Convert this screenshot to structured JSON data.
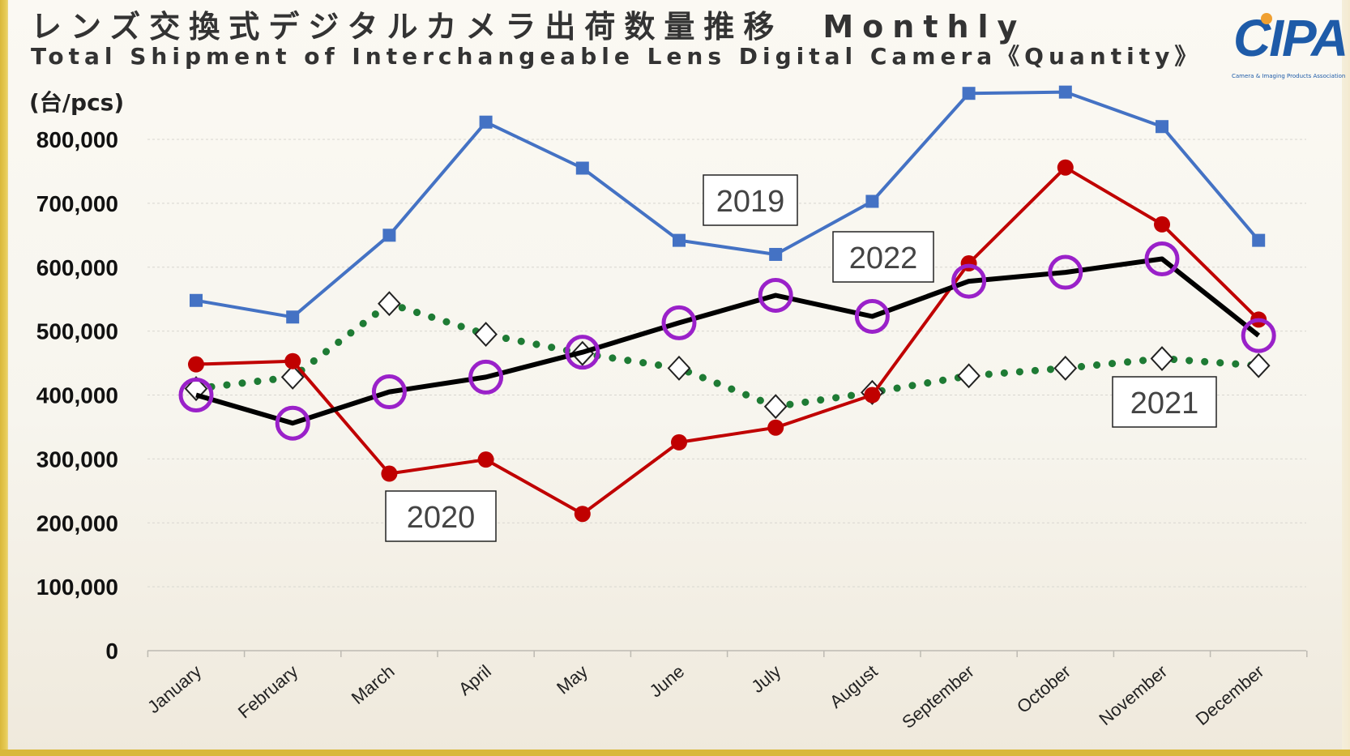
{
  "header": {
    "title_jp": "レンズ交換式デジタルカメラ出荷数量推移　Monthly",
    "title_en": "Total Shipment of Interchangeable Lens Digital Camera《Quantity》",
    "logo_text": "CIPA",
    "logo_subtext": "Camera & Imaging Products Association"
  },
  "chart_data": {
    "type": "line",
    "title": "レンズ交換式デジタルカメラ出荷数量推移　Monthly",
    "subtitle": "Total Shipment of Interchangeable Lens Digital Camera《Quantity》",
    "ylabel": "(台/pcs)",
    "xlabel": "",
    "ylim": [
      0,
      800000
    ],
    "yticks": [
      0,
      100000,
      200000,
      300000,
      400000,
      500000,
      600000,
      700000,
      800000
    ],
    "ytick_labels": [
      "0",
      "100,000",
      "200,000",
      "300,000",
      "400,000",
      "500,000",
      "600,000",
      "700,000",
      "800,000"
    ],
    "grid": true,
    "categories": [
      "January",
      "February",
      "March",
      "April",
      "May",
      "June",
      "July",
      "August",
      "September",
      "October",
      "November",
      "December"
    ],
    "series": [
      {
        "name": "2019",
        "color": "#4472c4",
        "marker": "square",
        "line_style": "solid",
        "values": [
          548000,
          522000,
          650000,
          827000,
          755000,
          642000,
          620000,
          703000,
          872000,
          874000,
          820000,
          642000
        ]
      },
      {
        "name": "2020",
        "color": "#c00000",
        "marker": "circle",
        "line_style": "solid",
        "values": [
          448000,
          453000,
          277000,
          299000,
          214000,
          326000,
          349000,
          400000,
          606000,
          756000,
          667000,
          518000
        ]
      },
      {
        "name": "2021",
        "color": "#1e7b34",
        "marker": "diamond",
        "line_style": "dotted",
        "values": [
          410000,
          428000,
          543000,
          495000,
          465000,
          442000,
          382000,
          404000,
          430000,
          442000,
          457000,
          446000
        ]
      },
      {
        "name": "2022",
        "color": "#000000",
        "marker": "ring",
        "marker_color": "#9a21c9",
        "line_style": "solid",
        "values": [
          400000,
          356000,
          405000,
          428000,
          467000,
          513000,
          556000,
          523000,
          578000,
          592000,
          613000,
          493000
        ]
      }
    ],
    "annotations": [
      {
        "text": "2019",
        "series": "2019"
      },
      {
        "text": "2020",
        "series": "2020"
      },
      {
        "text": "2021",
        "series": "2021"
      },
      {
        "text": "2022",
        "series": "2022"
      }
    ]
  }
}
